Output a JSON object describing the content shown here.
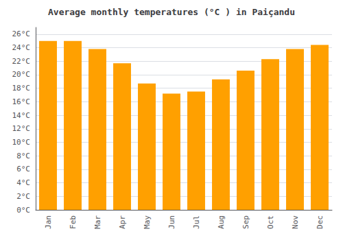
{
  "chart_data": {
    "type": "bar",
    "title": "Average monthly temperatures (°C ) in Paiçandu",
    "categories": [
      "Jan",
      "Feb",
      "Mar",
      "Apr",
      "May",
      "Jun",
      "Jul",
      "Aug",
      "Sep",
      "Oct",
      "Nov",
      "Dec"
    ],
    "values": [
      25.0,
      25.0,
      23.8,
      21.7,
      18.7,
      17.2,
      17.5,
      19.3,
      20.6,
      22.3,
      23.8,
      24.4
    ],
    "color": "#FFA000",
    "ylim": [
      0,
      27
    ],
    "yticks": [
      {
        "value": 0,
        "label": "0°C"
      },
      {
        "value": 2,
        "label": "2°C"
      },
      {
        "value": 4,
        "label": "4°C"
      },
      {
        "value": 6,
        "label": "6°C"
      },
      {
        "value": 8,
        "label": "8°C"
      },
      {
        "value": 10,
        "label": "10°C"
      },
      {
        "value": 12,
        "label": "12°C"
      },
      {
        "value": 14,
        "label": "14°C"
      },
      {
        "value": 16,
        "label": "16°C"
      },
      {
        "value": 18,
        "label": "18°C"
      },
      {
        "value": 20,
        "label": "20°C"
      },
      {
        "value": 22,
        "label": "22°C"
      },
      {
        "value": 24,
        "label": "24°C"
      },
      {
        "value": 26,
        "label": "26°C"
      }
    ],
    "grid": true
  }
}
